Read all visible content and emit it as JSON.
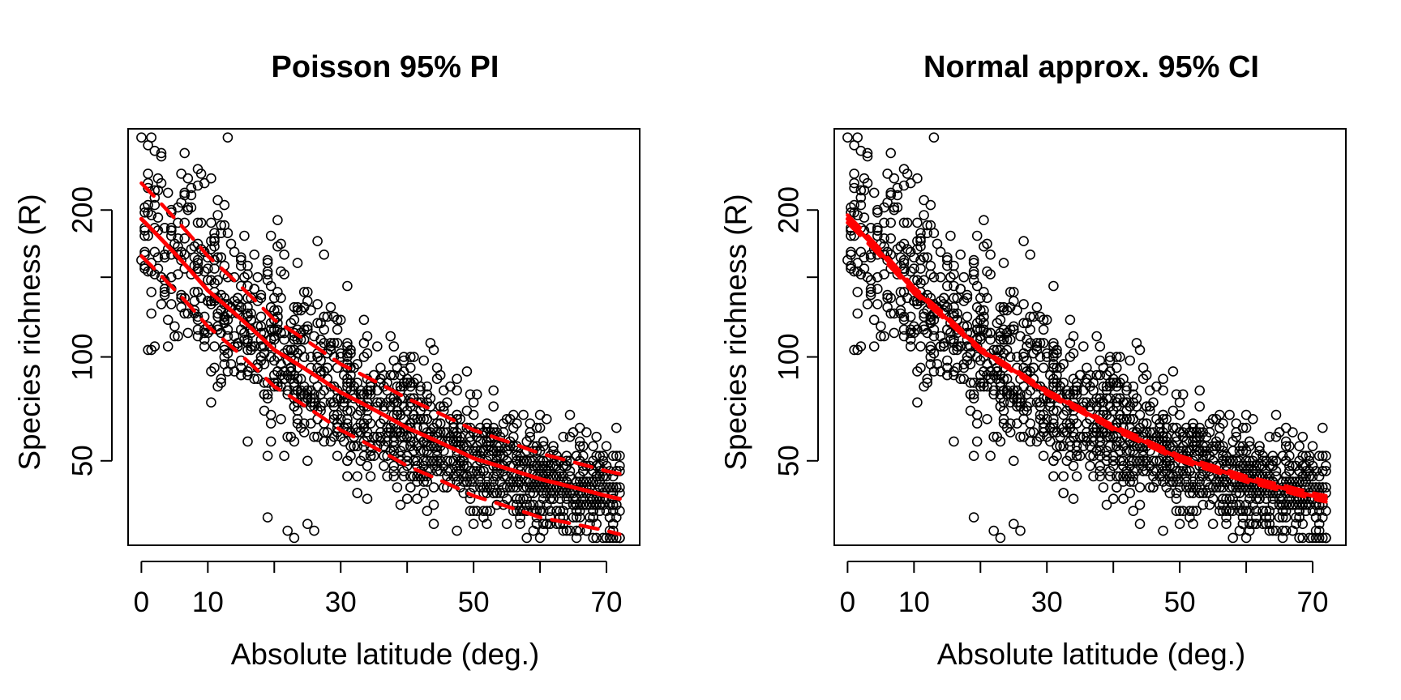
{
  "figure": {
    "panels": [
      {
        "title": "Poisson 95% PI",
        "xlabel": "Absolute latitude (deg.)",
        "ylabel": "Species richness (R)"
      },
      {
        "title": "Normal approx. 95% CI",
        "xlabel": "Absolute latitude (deg.)",
        "ylabel": "Species richness (R)"
      }
    ],
    "x_tick_labels": [
      "0",
      "10",
      "30",
      "50",
      "70"
    ],
    "y_tick_labels": [
      "50",
      "100",
      "200"
    ]
  },
  "chart_data": [
    {
      "type": "scatter",
      "title": "Poisson 95% PI",
      "xlabel": "Absolute latitude (deg.)",
      "ylabel": "Species richness (R)",
      "x_ticks": [
        0,
        10,
        20,
        30,
        40,
        50,
        60,
        70
      ],
      "x_tick_labels": [
        "0",
        "10",
        "30",
        "50",
        "70"
      ],
      "y_ticks": [
        50,
        100,
        200
      ],
      "y_scale": "sqrt",
      "xlim": [
        -2,
        75
      ],
      "ylim": [
        22,
        270
      ],
      "grid": false,
      "point_style": "open circle",
      "points_note": "approx. 1500 sampled observations; representative values",
      "fit": {
        "model": "Poisson GLM, log link",
        "x": [
          0,
          10,
          20,
          30,
          40,
          50,
          60,
          70,
          72
        ],
        "y": [
          193,
          141,
          104,
          81,
          64,
          51,
          43,
          37,
          36
        ],
        "color": "#ff0000",
        "style": "solid"
      },
      "interval": {
        "kind": "95% prediction interval",
        "x": [
          0,
          10,
          20,
          30,
          40,
          50,
          60,
          70,
          72
        ],
        "lower": [
          165,
          118,
          84,
          63,
          48,
          37,
          30,
          26,
          25
        ],
        "upper": [
          222,
          165,
          122,
          96,
          78,
          63,
          53,
          46,
          45
        ],
        "color": "#ff0000",
        "style": "dashed"
      }
    },
    {
      "type": "scatter",
      "title": "Normal approx. 95% CI",
      "xlabel": "Absolute latitude (deg.)",
      "ylabel": "Species richness (R)",
      "x_ticks": [
        0,
        10,
        20,
        30,
        40,
        50,
        60,
        70
      ],
      "x_tick_labels": [
        "0",
        "10",
        "30",
        "50",
        "70"
      ],
      "y_ticks": [
        50,
        100,
        200
      ],
      "y_scale": "sqrt",
      "xlim": [
        -2,
        75
      ],
      "ylim": [
        22,
        270
      ],
      "grid": false,
      "point_style": "open circle",
      "points_note": "same observations as the left panel",
      "fit": {
        "model": "Poisson GLM, log link",
        "x": [
          0,
          10,
          20,
          30,
          40,
          50,
          60,
          70,
          72
        ],
        "y": [
          193,
          141,
          104,
          81,
          64,
          51,
          43,
          37,
          36
        ],
        "color": "#ff0000",
        "style": "solid"
      },
      "interval": {
        "kind": "95% confidence interval (normal approx.)",
        "x": [
          0,
          10,
          20,
          30,
          40,
          50,
          60,
          70,
          72
        ],
        "lower": [
          190,
          139,
          103,
          80,
          63,
          50,
          42,
          36,
          35
        ],
        "upper": [
          196,
          143,
          105,
          82,
          65,
          52,
          44,
          38,
          37
        ],
        "color": "#ff0000",
        "style": "dashed"
      }
    }
  ]
}
